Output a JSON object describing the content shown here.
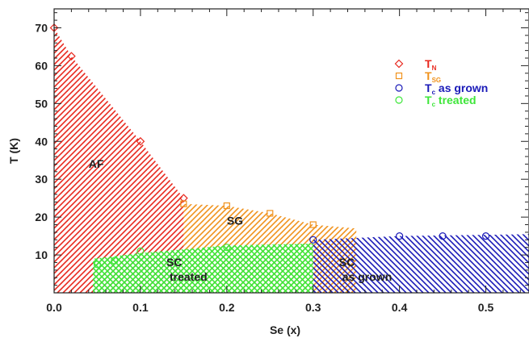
{
  "chart_data": {
    "type": "scatter",
    "xlabel": "Se (x)",
    "ylabel": "T (K)",
    "xlim": [
      0.0,
      0.55
    ],
    "ylim": [
      0,
      75
    ],
    "x_ticks": [
      0.0,
      0.1,
      0.2,
      0.3,
      0.4,
      0.5
    ],
    "x_tick_labels": [
      "0.0",
      "0.1",
      "0.2",
      "0.3",
      "0.4",
      "0.5"
    ],
    "y_ticks": [
      10,
      20,
      30,
      40,
      50,
      60,
      70
    ],
    "y_tick_labels": [
      "10",
      "20",
      "30",
      "40",
      "50",
      "60",
      "70"
    ],
    "grid": false,
    "legend_position": "top-right",
    "colors": {
      "af": "#e8281e",
      "sg": "#f0921c",
      "sc_as_grown": "#1a1ab8",
      "sc_treated": "#3ee63a",
      "axis": "#222222"
    },
    "series": [
      {
        "key": "tn",
        "legend_main": "T",
        "legend_sub": "N",
        "marker": "diamond",
        "color": "#e8281e",
        "points": [
          [
            0.0,
            70
          ],
          [
            0.02,
            62.5
          ],
          [
            0.1,
            40
          ],
          [
            0.15,
            25
          ]
        ]
      },
      {
        "key": "tsg",
        "legend_main": "T",
        "legend_sub": "SG",
        "marker": "square",
        "color": "#f0921c",
        "points": [
          [
            0.15,
            23.5
          ],
          [
            0.2,
            23
          ],
          [
            0.25,
            21
          ],
          [
            0.3,
            18
          ]
        ]
      },
      {
        "key": "tc_grown",
        "legend_main": "T",
        "legend_sub": "c",
        "legend_rest": " as grown",
        "marker": "circle",
        "color": "#1a1ab8",
        "points": [
          [
            0.3,
            14
          ],
          [
            0.4,
            15
          ],
          [
            0.45,
            15
          ],
          [
            0.5,
            15
          ]
        ]
      },
      {
        "key": "tc_treated",
        "legend_main": "T",
        "legend_sub": "c",
        "legend_rest": " treated",
        "marker": "circle",
        "color": "#3ee63a",
        "points": [
          [
            0.05,
            7.5
          ],
          [
            0.07,
            8.5
          ],
          [
            0.1,
            11
          ],
          [
            0.2,
            12
          ]
        ]
      }
    ],
    "regions": [
      {
        "key": "af",
        "label_lines": [
          "AF"
        ],
        "label_at": [
          0.04,
          33
        ],
        "color": "#e8281e",
        "pattern": "diag-right",
        "polygon": [
          [
            0.0,
            70
          ],
          [
            0.02,
            62.5
          ],
          [
            0.1,
            40
          ],
          [
            0.15,
            25
          ],
          [
            0.15,
            0
          ],
          [
            0.0,
            0
          ]
        ]
      },
      {
        "key": "sg",
        "label_lines": [
          "SG"
        ],
        "label_at": [
          0.2,
          18
        ],
        "color": "#f0921c",
        "pattern": "diag-right",
        "polygon": [
          [
            0.15,
            23.5
          ],
          [
            0.2,
            23
          ],
          [
            0.25,
            21
          ],
          [
            0.3,
            18
          ],
          [
            0.35,
            17
          ],
          [
            0.35,
            0
          ],
          [
            0.15,
            0
          ]
        ]
      },
      {
        "key": "sc_as_grown",
        "label_lines": [
          "SC",
          "as grown"
        ],
        "label_at": [
          0.33,
          7
        ],
        "color": "#1a1ab8",
        "pattern": "diag-left",
        "polygon": [
          [
            0.3,
            14
          ],
          [
            0.4,
            15
          ],
          [
            0.55,
            15.5
          ],
          [
            0.55,
            0
          ],
          [
            0.3,
            0
          ]
        ]
      },
      {
        "key": "sc_treated",
        "label_lines": [
          "SC",
          "treated"
        ],
        "label_at": [
          0.13,
          7
        ],
        "color": "#3ee63a",
        "pattern": "cross",
        "polygon": [
          [
            0.045,
            9
          ],
          [
            0.1,
            10.5
          ],
          [
            0.2,
            12.5
          ],
          [
            0.3,
            13
          ],
          [
            0.3,
            0
          ],
          [
            0.045,
            0
          ]
        ]
      }
    ]
  }
}
